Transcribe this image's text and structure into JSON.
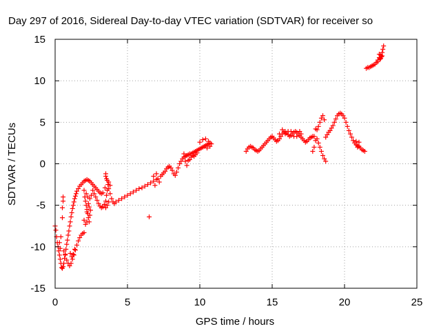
{
  "chart_data": {
    "type": "scatter",
    "title": "Day 297 of 2016, Sidereal Day-to-day VTEC variation (SDTVAR) for receiver so",
    "xlabel": "GPS time / hours",
    "ylabel": "SDTVAR / TECUs",
    "xlim": [
      0,
      25
    ],
    "ylim": [
      -15,
      15
    ],
    "xticks": [
      0,
      5,
      10,
      15,
      20,
      25
    ],
    "yticks": [
      -15,
      -10,
      -5,
      0,
      5,
      10,
      15
    ],
    "xtick_labels": [
      "0",
      "5",
      "10",
      "15",
      "20",
      "25"
    ],
    "ytick_labels": [
      "-15",
      "-10",
      "-5",
      "0",
      "5",
      "10",
      "15"
    ],
    "grid": true,
    "legend": "none",
    "marker": "plus",
    "color": "#ff0000",
    "series": [
      {
        "name": "",
        "points": [
          [
            0.0,
            -7.5
          ],
          [
            0.05,
            -8.0
          ],
          [
            0.1,
            -8.8
          ],
          [
            0.15,
            -9.5
          ],
          [
            0.2,
            -10.0
          ],
          [
            0.25,
            -10.5
          ],
          [
            0.3,
            -11.0
          ],
          [
            0.35,
            -11.5
          ],
          [
            0.4,
            -12.0
          ],
          [
            0.45,
            -12.5
          ],
          [
            0.5,
            -12.6
          ],
          [
            0.55,
            -12.4
          ],
          [
            0.6,
            -12.0
          ],
          [
            0.65,
            -11.4
          ],
          [
            0.7,
            -10.9
          ],
          [
            0.75,
            -10.3
          ],
          [
            0.8,
            -9.7
          ],
          [
            0.85,
            -9.2
          ],
          [
            0.9,
            -8.6
          ],
          [
            0.95,
            -8.1
          ],
          [
            1.0,
            -7.5
          ],
          [
            1.05,
            -7.0
          ],
          [
            1.1,
            -6.4
          ],
          [
            1.15,
            -5.9
          ],
          [
            1.2,
            -5.4
          ],
          [
            1.25,
            -5.0
          ],
          [
            1.3,
            -4.6
          ],
          [
            1.35,
            -4.2
          ],
          [
            1.4,
            -3.9
          ],
          [
            1.45,
            -3.6
          ],
          [
            1.5,
            -3.3
          ],
          [
            1.6,
            -3.0
          ],
          [
            1.7,
            -2.7
          ],
          [
            1.8,
            -2.5
          ],
          [
            1.9,
            -2.3
          ],
          [
            2.0,
            -2.1
          ],
          [
            2.1,
            -2.0
          ],
          [
            2.2,
            -1.9
          ],
          [
            2.3,
            -2.0
          ],
          [
            2.4,
            -2.1
          ],
          [
            2.5,
            -2.3
          ],
          [
            2.6,
            -2.5
          ],
          [
            2.7,
            -2.7
          ],
          [
            2.8,
            -2.9
          ],
          [
            2.9,
            -3.1
          ],
          [
            3.0,
            -3.3
          ],
          [
            3.1,
            -3.5
          ],
          [
            3.2,
            -3.6
          ],
          [
            3.3,
            -3.5
          ],
          [
            0.6,
            -10.5
          ],
          [
            0.7,
            -11.0
          ],
          [
            0.8,
            -11.6
          ],
          [
            0.9,
            -12.0
          ],
          [
            1.0,
            -12.3
          ],
          [
            1.1,
            -12.0
          ],
          [
            1.2,
            -11.5
          ],
          [
            1.3,
            -11.0
          ],
          [
            1.4,
            -10.4
          ],
          [
            1.5,
            -9.8
          ],
          [
            1.6,
            -9.3
          ],
          [
            1.7,
            -8.9
          ],
          [
            1.8,
            -8.6
          ],
          [
            1.9,
            -8.4
          ],
          [
            2.0,
            -8.3
          ],
          [
            1.05,
            -10.8
          ],
          [
            1.15,
            -11.2
          ],
          [
            1.25,
            -10.9
          ],
          [
            1.35,
            -10.3
          ],
          [
            0.55,
            -4.0
          ],
          [
            0.55,
            -4.5
          ],
          [
            0.5,
            -5.3
          ],
          [
            0.5,
            -6.5
          ],
          [
            0.3,
            -9.5
          ],
          [
            0.4,
            -8.8
          ],
          [
            0.35,
            -10.2
          ],
          [
            2.0,
            -3.2
          ],
          [
            2.05,
            -4.0
          ],
          [
            2.1,
            -4.5
          ],
          [
            2.15,
            -5.0
          ],
          [
            2.2,
            -5.5
          ],
          [
            2.25,
            -6.0
          ],
          [
            2.3,
            -6.5
          ],
          [
            2.35,
            -7.0
          ],
          [
            2.0,
            -6.8
          ],
          [
            2.1,
            -7.3
          ],
          [
            2.2,
            -5.8
          ],
          [
            2.3,
            -4.8
          ],
          [
            2.4,
            -4.2
          ],
          [
            2.5,
            -3.8
          ],
          [
            2.35,
            -5.2
          ],
          [
            2.45,
            -5.6
          ],
          [
            2.25,
            -4.0
          ],
          [
            2.15,
            -3.6
          ],
          [
            2.4,
            -6.2
          ],
          [
            2.2,
            -7.0
          ],
          [
            2.6,
            -3.2
          ],
          [
            2.7,
            -3.6
          ],
          [
            2.8,
            -4.0
          ],
          [
            2.9,
            -4.4
          ],
          [
            3.0,
            -4.8
          ],
          [
            3.1,
            -5.1
          ],
          [
            3.2,
            -5.3
          ],
          [
            3.3,
            -5.2
          ],
          [
            3.4,
            -4.9
          ],
          [
            3.5,
            -4.5
          ],
          [
            3.55,
            -3.8
          ],
          [
            3.6,
            -3.2
          ],
          [
            3.65,
            -2.5
          ],
          [
            3.5,
            -1.5
          ],
          [
            3.55,
            -1.8
          ],
          [
            3.6,
            -2.0
          ],
          [
            3.7,
            -2.2
          ],
          [
            3.8,
            -2.6
          ],
          [
            3.5,
            -1.2
          ],
          [
            3.45,
            -2.9
          ],
          [
            3.7,
            -3.0
          ],
          [
            3.8,
            -3.6
          ],
          [
            3.9,
            -4.2
          ],
          [
            4.0,
            -4.6
          ],
          [
            4.1,
            -4.8
          ],
          [
            3.6,
            -5.0
          ],
          [
            3.7,
            -4.6
          ],
          [
            3.5,
            -5.3
          ],
          [
            4.2,
            -4.6
          ],
          [
            4.4,
            -4.4
          ],
          [
            4.6,
            -4.2
          ],
          [
            4.8,
            -4.0
          ],
          [
            5.0,
            -3.8
          ],
          [
            5.2,
            -3.6
          ],
          [
            5.4,
            -3.4
          ],
          [
            5.6,
            -3.2
          ],
          [
            5.8,
            -3.0
          ],
          [
            6.0,
            -2.9
          ],
          [
            6.2,
            -2.7
          ],
          [
            6.4,
            -2.5
          ],
          [
            6.6,
            -2.3
          ],
          [
            6.8,
            -2.1
          ],
          [
            7.0,
            -1.9
          ],
          [
            6.5,
            -6.4
          ],
          [
            6.8,
            -1.5
          ],
          [
            6.9,
            -2.6
          ],
          [
            7.0,
            -1.2
          ],
          [
            7.1,
            -1.8
          ],
          [
            7.2,
            -2.2
          ],
          [
            7.3,
            -1.5
          ],
          [
            7.4,
            -1.3
          ],
          [
            7.5,
            -1.1
          ],
          [
            7.6,
            -0.9
          ],
          [
            7.7,
            -0.6
          ],
          [
            7.8,
            -0.4
          ],
          [
            7.9,
            -0.3
          ],
          [
            8.0,
            -0.5
          ],
          [
            8.1,
            -0.8
          ],
          [
            8.2,
            -1.2
          ],
          [
            8.3,
            -1.4
          ],
          [
            8.4,
            -1.0
          ],
          [
            8.5,
            -0.5
          ],
          [
            8.6,
            0.0
          ],
          [
            8.7,
            0.3
          ],
          [
            8.8,
            0.6
          ],
          [
            8.9,
            0.8
          ],
          [
            9.0,
            0.9
          ],
          [
            9.1,
            1.0
          ],
          [
            9.2,
            1.1
          ],
          [
            9.3,
            1.2
          ],
          [
            9.4,
            1.2
          ],
          [
            9.5,
            1.3
          ],
          [
            9.6,
            1.4
          ],
          [
            9.7,
            1.5
          ],
          [
            9.8,
            1.6
          ],
          [
            9.9,
            1.7
          ],
          [
            10.0,
            1.8
          ],
          [
            10.1,
            1.9
          ],
          [
            10.2,
            2.0
          ],
          [
            10.3,
            2.1
          ],
          [
            10.4,
            2.2
          ],
          [
            10.5,
            2.3
          ],
          [
            10.6,
            2.4
          ],
          [
            10.7,
            2.5
          ],
          [
            8.9,
            1.2
          ],
          [
            9.0,
            0.3
          ],
          [
            9.1,
            -0.2
          ],
          [
            9.2,
            0.4
          ],
          [
            9.3,
            0.5
          ],
          [
            9.4,
            0.8
          ],
          [
            9.5,
            1.0
          ],
          [
            9.6,
            0.9
          ],
          [
            9.7,
            1.1
          ],
          [
            9.8,
            1.3
          ],
          [
            10.0,
            2.6
          ],
          [
            10.2,
            2.9
          ],
          [
            10.4,
            3.0
          ],
          [
            10.6,
            2.7
          ],
          [
            10.8,
            2.4
          ],
          [
            10.5,
            1.9
          ],
          [
            10.7,
            2.1
          ],
          [
            13.2,
            1.5
          ],
          [
            13.3,
            1.8
          ],
          [
            13.4,
            2.0
          ],
          [
            13.5,
            2.1
          ],
          [
            13.6,
            2.0
          ],
          [
            13.7,
            1.9
          ],
          [
            13.8,
            1.7
          ],
          [
            13.9,
            1.6
          ],
          [
            14.0,
            1.5
          ],
          [
            14.1,
            1.6
          ],
          [
            14.2,
            1.8
          ],
          [
            14.3,
            2.0
          ],
          [
            14.4,
            2.2
          ],
          [
            14.5,
            2.4
          ],
          [
            14.6,
            2.6
          ],
          [
            14.7,
            2.8
          ],
          [
            14.8,
            3.0
          ],
          [
            14.9,
            3.2
          ],
          [
            15.0,
            3.3
          ],
          [
            15.1,
            3.1
          ],
          [
            15.2,
            2.9
          ],
          [
            15.3,
            2.7
          ],
          [
            15.4,
            2.8
          ],
          [
            15.5,
            3.0
          ],
          [
            15.6,
            3.3
          ],
          [
            15.7,
            3.6
          ],
          [
            15.8,
            3.8
          ],
          [
            15.9,
            3.9
          ],
          [
            16.0,
            3.7
          ],
          [
            16.1,
            3.5
          ],
          [
            16.2,
            3.3
          ],
          [
            16.3,
            3.4
          ],
          [
            16.4,
            3.6
          ],
          [
            16.5,
            3.8
          ],
          [
            16.6,
            3.9
          ],
          [
            16.7,
            3.8
          ],
          [
            16.8,
            3.6
          ],
          [
            16.9,
            3.4
          ],
          [
            17.0,
            3.2
          ],
          [
            17.1,
            3.0
          ],
          [
            17.2,
            2.8
          ],
          [
            17.3,
            2.6
          ],
          [
            17.4,
            2.7
          ],
          [
            17.5,
            2.9
          ],
          [
            17.6,
            3.1
          ],
          [
            17.7,
            3.2
          ],
          [
            17.8,
            3.3
          ],
          [
            17.9,
            3.3
          ],
          [
            15.5,
            3.6
          ],
          [
            15.7,
            4.1
          ],
          [
            15.9,
            3.6
          ],
          [
            16.1,
            3.9
          ],
          [
            16.3,
            3.9
          ],
          [
            16.5,
            3.3
          ],
          [
            16.7,
            3.3
          ],
          [
            16.9,
            3.9
          ],
          [
            17.0,
            3.6
          ],
          [
            18.0,
            4.2
          ],
          [
            18.1,
            4.1
          ],
          [
            18.2,
            4.5
          ],
          [
            18.3,
            5.0
          ],
          [
            18.4,
            5.5
          ],
          [
            18.5,
            5.8
          ],
          [
            18.6,
            5.3
          ],
          [
            18.2,
            2.5
          ],
          [
            18.3,
            2.0
          ],
          [
            18.4,
            1.5
          ],
          [
            18.5,
            1.0
          ],
          [
            18.6,
            0.6
          ],
          [
            18.7,
            0.3
          ],
          [
            18.1,
            3.0
          ],
          [
            18.0,
            2.8
          ],
          [
            17.9,
            2.0
          ],
          [
            17.8,
            1.5
          ],
          [
            18.7,
            3.2
          ],
          [
            18.8,
            3.5
          ],
          [
            18.9,
            3.8
          ],
          [
            19.0,
            4.0
          ],
          [
            19.1,
            4.3
          ],
          [
            19.2,
            4.6
          ],
          [
            19.3,
            5.0
          ],
          [
            19.4,
            5.4
          ],
          [
            19.5,
            5.8
          ],
          [
            19.6,
            6.0
          ],
          [
            19.7,
            6.1
          ],
          [
            19.8,
            6.0
          ],
          [
            19.9,
            5.8
          ],
          [
            20.0,
            5.5
          ],
          [
            20.1,
            5.0
          ],
          [
            20.2,
            4.5
          ],
          [
            20.3,
            4.0
          ],
          [
            20.4,
            3.6
          ],
          [
            20.5,
            3.2
          ],
          [
            20.6,
            2.8
          ],
          [
            20.7,
            2.5
          ],
          [
            20.8,
            2.3
          ],
          [
            20.9,
            2.2
          ],
          [
            21.0,
            2.1
          ],
          [
            21.1,
            1.9
          ],
          [
            21.2,
            1.7
          ],
          [
            21.3,
            1.6
          ],
          [
            21.4,
            1.5
          ],
          [
            20.8,
            2.7
          ],
          [
            21.0,
            2.6
          ],
          [
            20.9,
            2.0
          ],
          [
            21.5,
            11.5
          ],
          [
            21.6,
            11.6
          ],
          [
            21.7,
            11.6
          ],
          [
            21.8,
            11.7
          ],
          [
            21.9,
            11.8
          ],
          [
            22.0,
            11.9
          ],
          [
            22.1,
            12.0
          ],
          [
            22.2,
            12.2
          ],
          [
            22.3,
            12.5
          ],
          [
            22.4,
            12.8
          ],
          [
            22.5,
            13.1
          ],
          [
            22.6,
            13.4
          ],
          [
            22.65,
            13.8
          ],
          [
            22.7,
            14.2
          ],
          [
            22.6,
            13.0
          ],
          [
            22.5,
            12.7
          ],
          [
            22.4,
            13.2
          ],
          [
            22.55,
            12.9
          ],
          [
            22.3,
            12.3
          ],
          [
            22.45,
            12.6
          ]
        ]
      }
    ]
  }
}
